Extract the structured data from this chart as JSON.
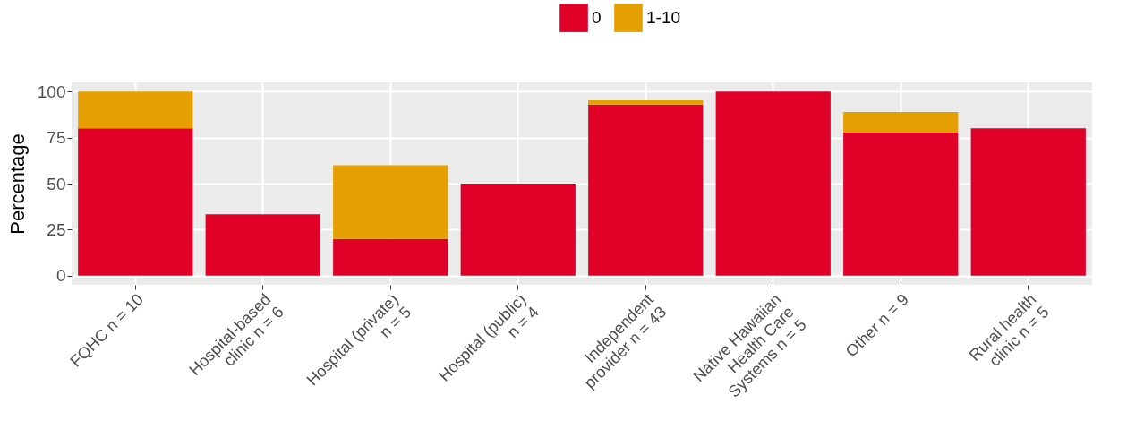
{
  "chart_data": {
    "type": "bar",
    "ylabel": "Percentage",
    "categories": [
      "FQHC n = 10",
      "Hospital-based\nclinic n = 6",
      "Hospital (private)\nn = 5",
      "Hospital (public)\nn = 4",
      "Independent\nprovider n = 43",
      "Native Hawaiian\nHealth Care\nSystems n = 5",
      "Other n = 9",
      "Rural health\nclinic n = 5"
    ],
    "series": [
      {
        "name": "0",
        "color": "#e00028",
        "values": [
          80,
          33.3,
          20,
          50,
          93.0,
          100,
          77.8,
          80
        ]
      },
      {
        "name": "1-10",
        "color": "#e69f00",
        "values": [
          20,
          0,
          40,
          0,
          2.3,
          0,
          11.1,
          0
        ]
      }
    ],
    "stacked": true,
    "ylim": [
      -5,
      105
    ],
    "yticks": [
      0,
      25,
      50,
      75,
      100
    ],
    "grid": true,
    "legend": "top"
  }
}
